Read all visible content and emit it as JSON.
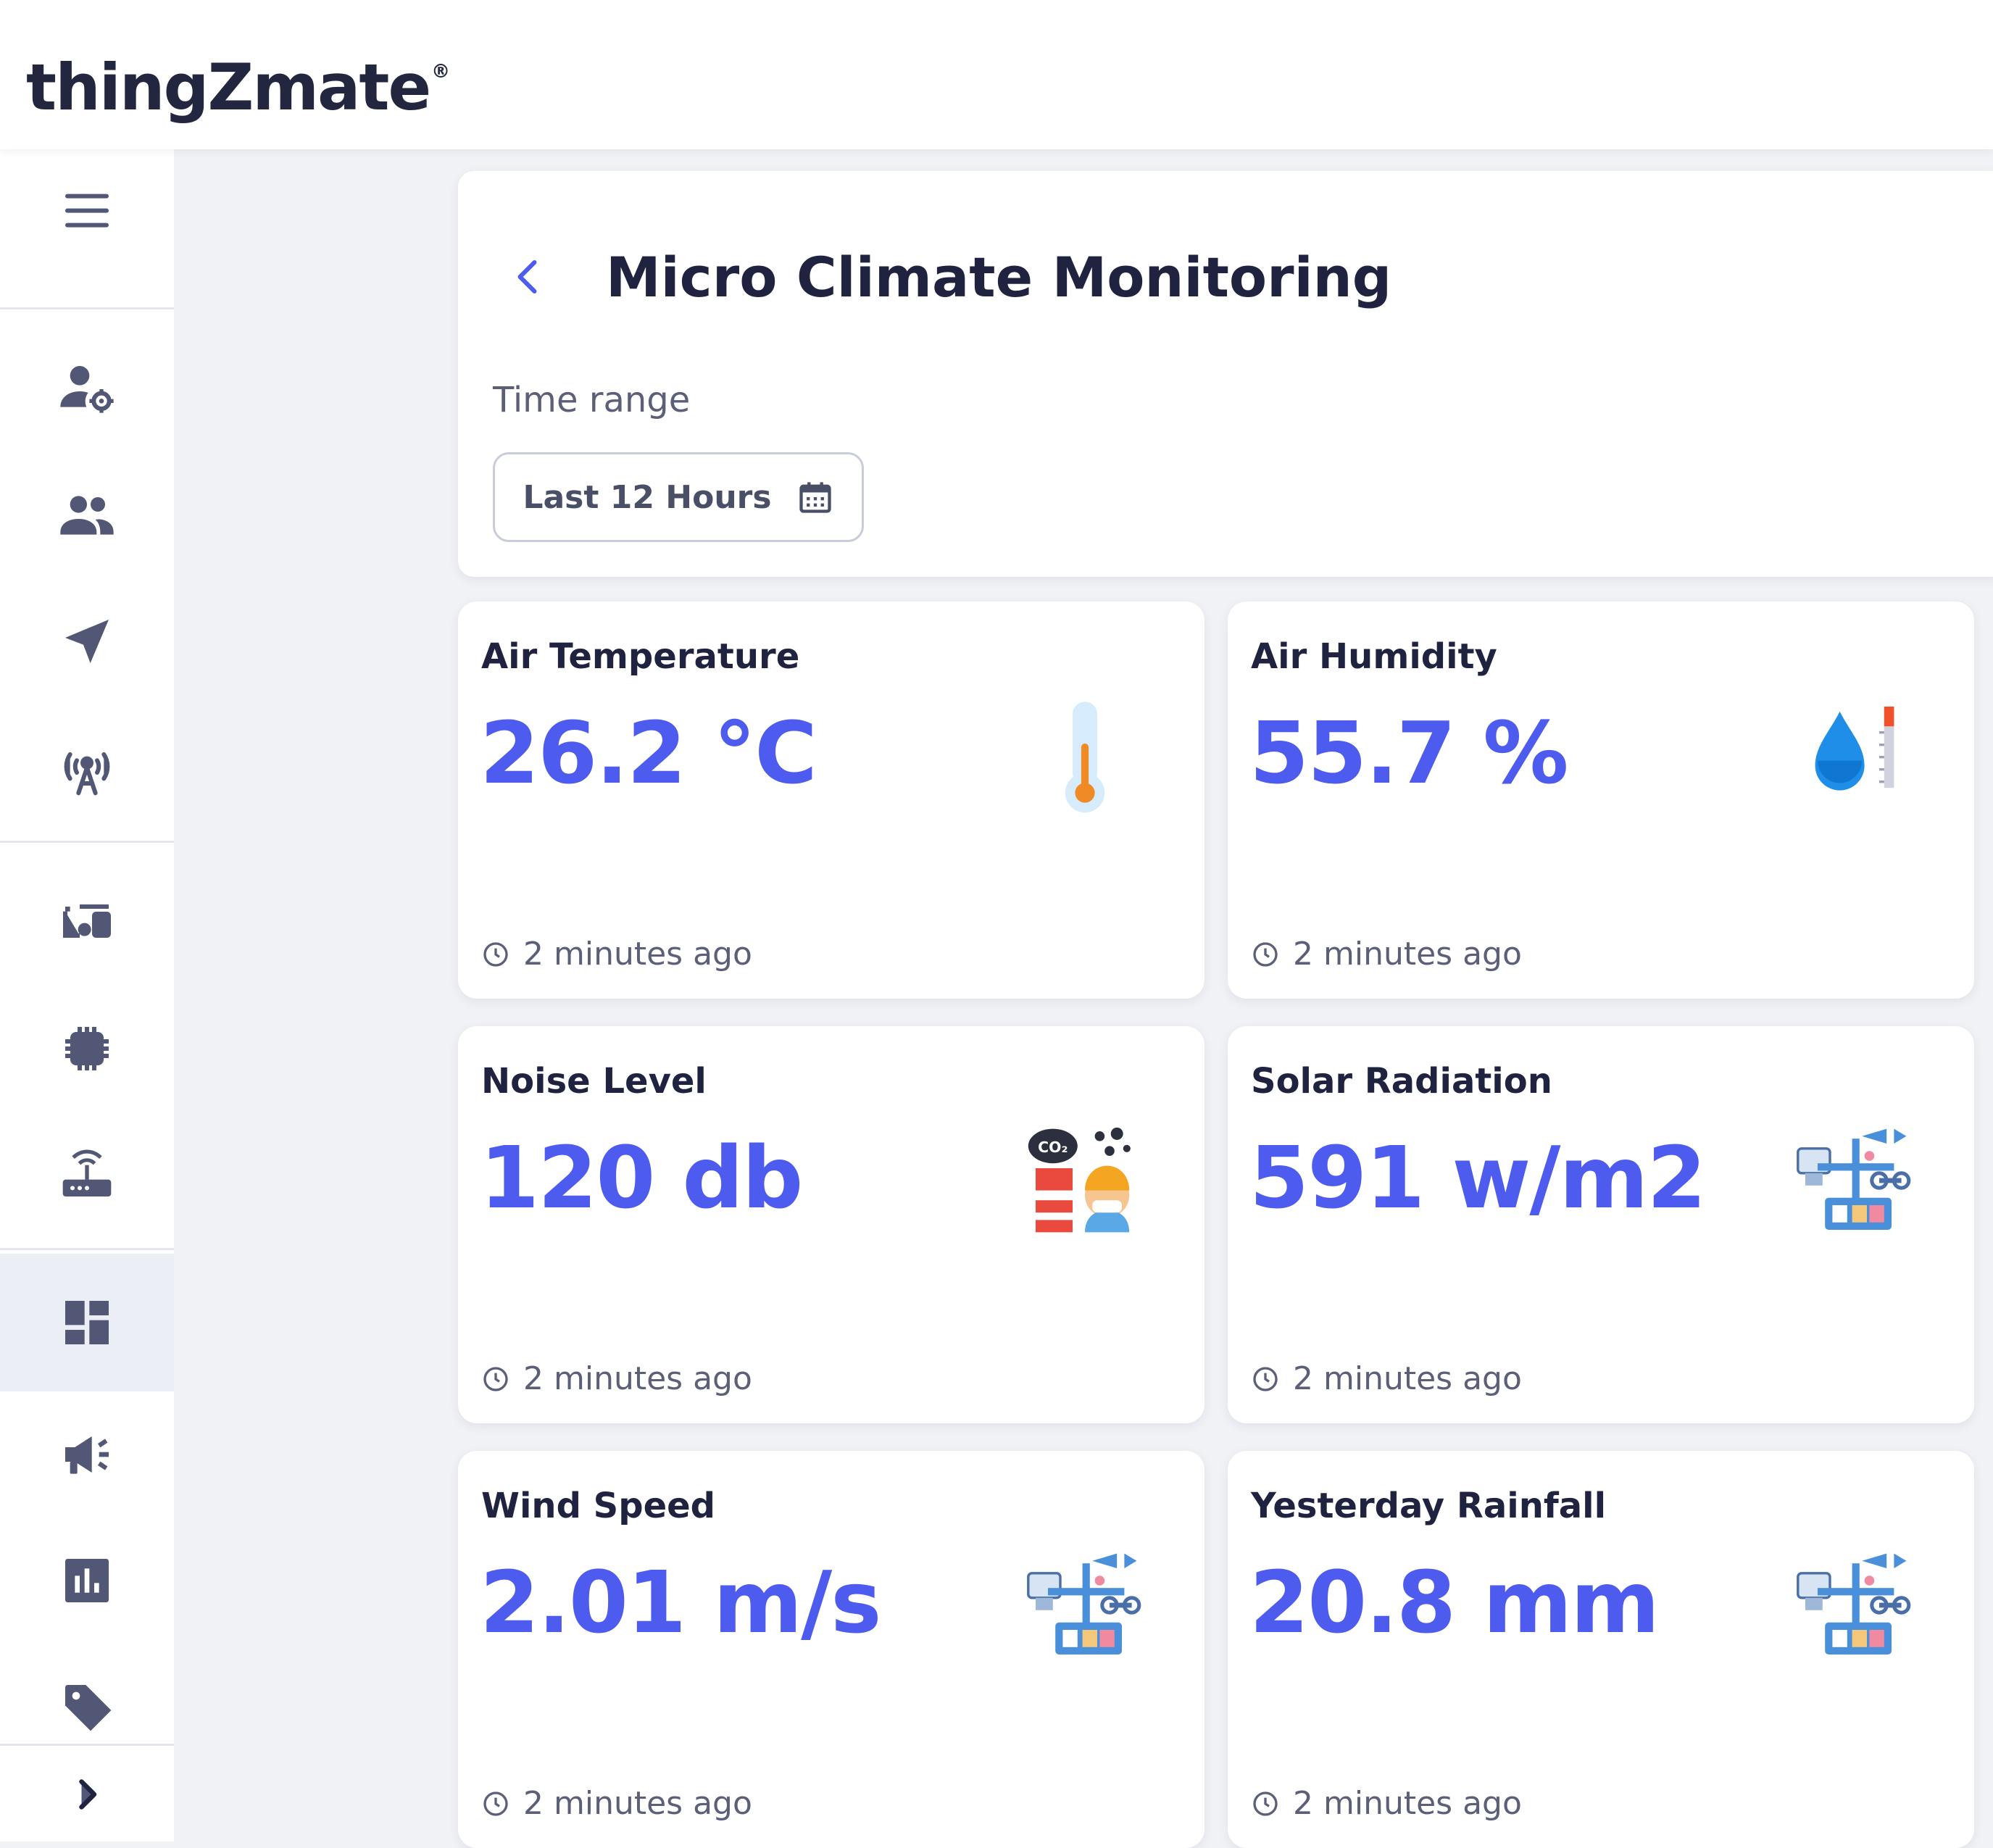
{
  "app": {
    "logo_text": "thingZmate",
    "logo_mark": "®"
  },
  "sidebar": {
    "items": [
      {
        "icon": "menu-icon"
      },
      {
        "icon": "user-settings-icon"
      },
      {
        "icon": "users-icon"
      },
      {
        "icon": "navigation-arrow-icon"
      },
      {
        "icon": "antenna-broadcast-icon"
      },
      {
        "icon": "devices-icon"
      },
      {
        "icon": "chip-icon"
      },
      {
        "icon": "router-icon"
      },
      {
        "icon": "dashboard-icon",
        "active": true
      },
      {
        "icon": "megaphone-icon"
      },
      {
        "icon": "bar-chart-icon"
      },
      {
        "icon": "tag-icon"
      },
      {
        "icon": "chevron-right-icon"
      }
    ]
  },
  "header": {
    "title": "Micro Climate Monitoring",
    "time_range_label": "Time range",
    "time_range_value": "Last 12 Hours"
  },
  "cards": [
    {
      "title": "Air Temperature",
      "value": "26.2 °C",
      "updated": "2 minutes ago",
      "icon": "thermometer-icon"
    },
    {
      "title": "Air Humidity",
      "value": "55.7 %",
      "updated": "2 minutes ago",
      "icon": "humidity-drop-icon"
    },
    {
      "title": "Noise Level",
      "value": "120 db",
      "updated": "2 minutes ago",
      "icon": "noise-pollution-icon"
    },
    {
      "title": "Solar Radiation",
      "value": "591 w/m2",
      "updated": "2 minutes ago",
      "icon": "weather-station-icon"
    },
    {
      "title": "Wind Speed",
      "value": "2.01 m/s",
      "updated": "2 minutes ago",
      "icon": "weather-station-icon"
    },
    {
      "title": "Yesterday Rainfall",
      "value": "20.8 mm",
      "updated": "2 minutes ago",
      "icon": "weather-station-icon"
    }
  ],
  "colors": {
    "accent": "#4d5bef",
    "sidebar_icon": "#515774",
    "background": "#f1f2f6"
  }
}
